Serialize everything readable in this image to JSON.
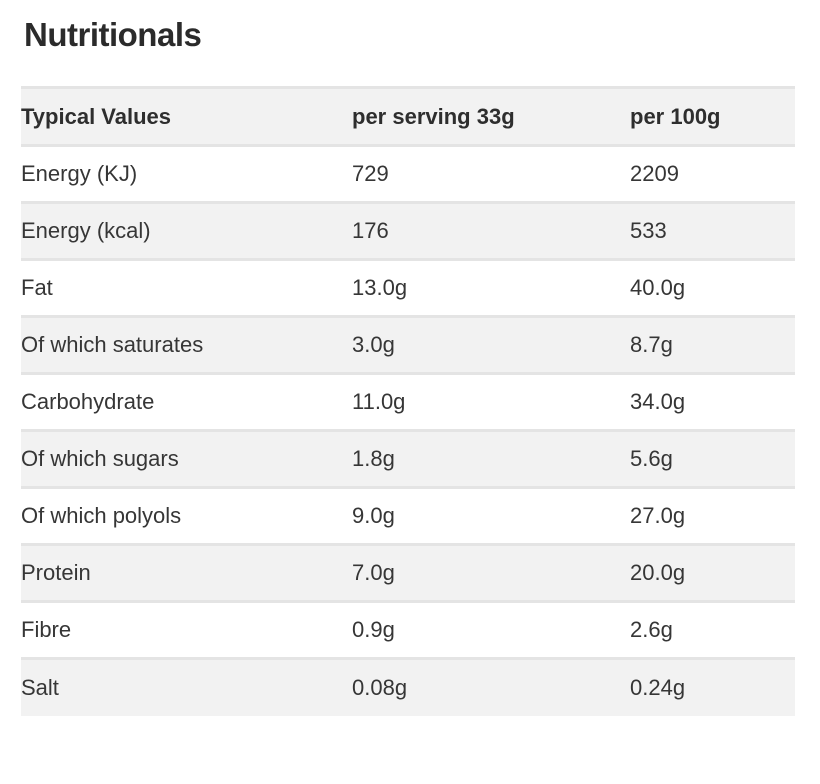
{
  "title": "Nutritionals",
  "table": {
    "headers": [
      "Typical Values",
      "per serving 33g",
      "per 100g"
    ],
    "rows": [
      {
        "label": "Energy (KJ)",
        "per_serving": "729",
        "per_100g": "2209"
      },
      {
        "label": "Energy (kcal)",
        "per_serving": "176",
        "per_100g": "533"
      },
      {
        "label": "Fat",
        "per_serving": "13.0g",
        "per_100g": "40.0g"
      },
      {
        "label": "Of which saturates",
        "per_serving": "3.0g",
        "per_100g": "8.7g"
      },
      {
        "label": "Carbohydrate",
        "per_serving": "11.0g",
        "per_100g": "34.0g"
      },
      {
        "label": "Of which sugars",
        "per_serving": "1.8g",
        "per_100g": "5.6g"
      },
      {
        "label": "Of which polyols",
        "per_serving": "9.0g",
        "per_100g": "27.0g"
      },
      {
        "label": "Protein",
        "per_serving": "7.0g",
        "per_100g": "20.0g"
      },
      {
        "label": "Fibre",
        "per_serving": "0.9g",
        "per_100g": "2.6g"
      },
      {
        "label": "Salt",
        "per_serving": "0.08g",
        "per_100g": "0.24g"
      }
    ]
  },
  "colors": {
    "background": "#ffffff",
    "row_alt_bg": "#f2f2f2",
    "row_border": "#e4e4e4",
    "text": "#363636",
    "title_text": "#2b2b2b"
  }
}
